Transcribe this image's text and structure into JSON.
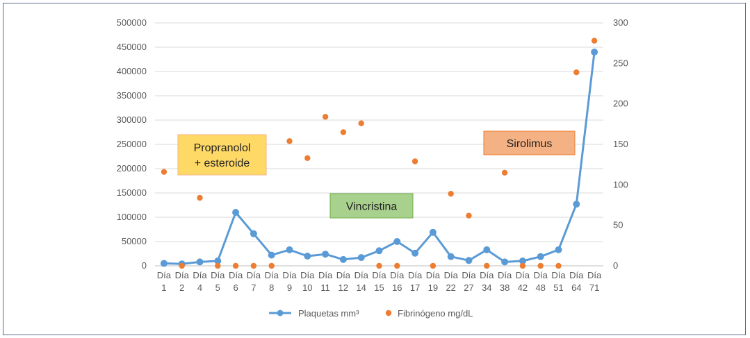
{
  "chart_data": {
    "type": "line",
    "title": "",
    "categories": [
      "Día 1",
      "Día 2",
      "Día 4",
      "Día 5",
      "Día 6",
      "Día 7",
      "Día 8",
      "Día 9",
      "Día 10",
      "Día 11",
      "Día 12",
      "Día 14",
      "Día 15",
      "Día 16",
      "Día 17",
      "Día 19",
      "Día 22",
      "Día 27",
      "Día 34",
      "Día 38",
      "Día 42",
      "Día 48",
      "Día 51",
      "Día 64",
      "Día 71"
    ],
    "category_lines": [
      [
        "Día",
        "1"
      ],
      [
        "Día",
        "2"
      ],
      [
        "Día",
        "4"
      ],
      [
        "Día",
        "5"
      ],
      [
        "Día",
        "6"
      ],
      [
        "Día",
        "7"
      ],
      [
        "Día",
        "8"
      ],
      [
        "Día",
        "9"
      ],
      [
        "Día",
        "10"
      ],
      [
        "Día",
        "11"
      ],
      [
        "Día",
        "12"
      ],
      [
        "Día",
        "14"
      ],
      [
        "Día",
        "15"
      ],
      [
        "Día",
        "16"
      ],
      [
        "Día",
        "17"
      ],
      [
        "Día",
        "19"
      ],
      [
        "Día",
        "22"
      ],
      [
        "Día",
        "27"
      ],
      [
        "Día",
        "34"
      ],
      [
        "Día",
        "38"
      ],
      [
        "Día",
        "42"
      ],
      [
        "Día",
        "48"
      ],
      [
        "Día",
        "51"
      ],
      [
        "Día",
        "64"
      ],
      [
        "Día",
        "71"
      ]
    ],
    "y_left": {
      "min": 0,
      "max": 500000,
      "step": 50000,
      "ticks": [
        "0",
        "50000",
        "100000",
        "150000",
        "200000",
        "250000",
        "300000",
        "350000",
        "400000",
        "450000",
        "500000"
      ]
    },
    "y_right": {
      "min": 0,
      "max": 300,
      "step": 50,
      "ticks": [
        "0",
        "50",
        "100",
        "150",
        "200",
        "250",
        "300"
      ]
    },
    "grid": true,
    "legend_position": "bottom",
    "series": [
      {
        "name": "Plaquetas mm³",
        "type": "line",
        "axis": "left",
        "color": "#5b9bd5",
        "values": [
          5000,
          4000,
          8000,
          10000,
          110000,
          66000,
          22000,
          33000,
          20000,
          24000,
          13000,
          17000,
          31000,
          50000,
          26000,
          69000,
          19000,
          11000,
          33000,
          8000,
          10000,
          19000,
          33000,
          127000,
          440000
        ]
      },
      {
        "name": "Fibrinógeno mg/dL",
        "type": "scatter",
        "axis": "right",
        "color": "#ed7d31",
        "values": [
          116,
          0,
          84,
          0,
          0,
          0,
          0,
          154,
          133,
          184,
          165,
          176,
          0,
          0,
          129,
          0,
          89,
          62,
          0,
          115,
          0,
          0,
          0,
          239,
          278
        ]
      }
    ],
    "annotations": [
      {
        "name": "propranolol",
        "lines": [
          "Propranolol",
          "+ esteroide"
        ],
        "fill": "#ffd966",
        "stroke": "#f4b183"
      },
      {
        "name": "vincristina",
        "lines": [
          "Vincristina"
        ],
        "fill": "#a9d18e",
        "stroke": "#70ad47"
      },
      {
        "name": "sirolimus",
        "lines": [
          "Sirolimus"
        ],
        "fill": "#f4b183",
        "stroke": "#ed7d31"
      }
    ]
  }
}
